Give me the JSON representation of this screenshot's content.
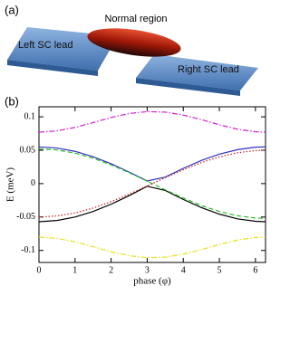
{
  "schematic": {
    "panel_label": "(a)",
    "labels": [
      "Normal region",
      "Left SC lead",
      "Right SC lead"
    ]
  },
  "chart_data": {
    "type": "line",
    "panel_label": "(b)",
    "xlabel": "phase (φ)",
    "ylabel": "E (meV)",
    "x": [
      0,
      0.5,
      1,
      1.5,
      2,
      2.5,
      3,
      3.5,
      4,
      4.5,
      5,
      5.5,
      6,
      6.28
    ],
    "xlim": [
      0,
      6.28
    ],
    "xticks": [
      0,
      1,
      2,
      3,
      4,
      5,
      6
    ],
    "ylim": [
      -0.118,
      0.115
    ],
    "yticks": [
      -0.1,
      -0.05,
      0,
      0.05,
      0.1
    ],
    "series": [
      {
        "color": "#d020d0",
        "dash": "dashdot",
        "values": [
          0.077,
          0.0789,
          0.0841,
          0.0914,
          0.099,
          0.1049,
          0.1078,
          0.107,
          0.1026,
          0.0958,
          0.0881,
          0.0815,
          0.0776,
          0.077
        ]
      },
      {
        "color": "#e8e020",
        "dash": "dashdot",
        "values": [
          -0.08,
          -0.0819,
          -0.0871,
          -0.0944,
          -0.102,
          -0.1079,
          -0.1108,
          -0.11,
          -0.1056,
          -0.0988,
          -0.0911,
          -0.0845,
          -0.0806,
          -0.08
        ]
      },
      {
        "color": "#3030c0",
        "dash": "solid",
        "values": [
          0.055,
          0.0533,
          0.0483,
          0.0402,
          0.0297,
          0.0173,
          0.004,
          0.0098,
          0.0229,
          0.0346,
          0.0441,
          0.0508,
          0.0545,
          0.055
        ]
      },
      {
        "color": "#000000",
        "dash": "solid",
        "values": [
          -0.057,
          -0.0552,
          -0.05,
          -0.0417,
          -0.0308,
          -0.018,
          -0.004,
          -0.0102,
          -0.0237,
          -0.0358,
          -0.0457,
          -0.0527,
          -0.0564,
          -0.057
        ]
      },
      {
        "color": "#20c020",
        "dash": "dashed",
        "values": [
          0.052,
          0.0504,
          0.0456,
          0.038,
          0.0281,
          0.0164,
          0.0037,
          -0.0093,
          -0.0216,
          -0.0327,
          -0.0417,
          -0.0481,
          -0.0515,
          -0.052
        ]
      },
      {
        "color": "#c02020",
        "dash": "dotted",
        "values": [
          -0.05,
          -0.0484,
          -0.0439,
          -0.0366,
          -0.027,
          -0.0158,
          -0.0035,
          0.0089,
          0.0208,
          0.0314,
          0.0401,
          0.0462,
          0.0495,
          0.05
        ]
      }
    ]
  }
}
